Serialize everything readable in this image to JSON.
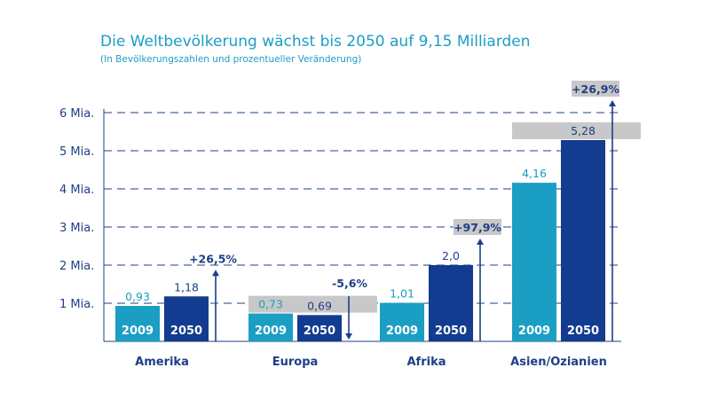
{
  "chart_data": {
    "type": "bar",
    "title": "Die Weltbevölkerung wächst bis 2050 auf 9,15 Milliarden",
    "subtitle": "(In Bevölkerungszahlen und prozentueller Veränderung)",
    "xlabel": "",
    "ylabel": "",
    "ylim": [
      0,
      6
    ],
    "yticks": [
      1,
      2,
      3,
      4,
      5,
      6
    ],
    "ytick_labels": [
      "1 Mia.",
      "2 Mia.",
      "3 Mia.",
      "4 Mia.",
      "5 Mia.",
      "6 Mia."
    ],
    "grid": true,
    "legend": "none",
    "categories": [
      "Amerika",
      "Europa",
      "Afrika",
      "Asien/Ozianien"
    ],
    "series": [
      {
        "name": "2009",
        "values": [
          0.93,
          0.73,
          1.01,
          4.16
        ],
        "labels": [
          "0,93",
          "0,73",
          "1,01",
          "4,16"
        ]
      },
      {
        "name": "2050",
        "values": [
          1.18,
          0.69,
          2.0,
          5.28
        ],
        "labels": [
          "1,18",
          "0,69",
          "2,0",
          "5,28"
        ]
      }
    ],
    "changes": [
      "+26,5%",
      "-5,6%",
      "+97,9%",
      "+26,9%"
    ],
    "highlighted_label_categories": [
      false,
      true,
      false,
      true
    ],
    "highlighted_change_categories": [
      false,
      false,
      true,
      true
    ],
    "colors": {
      "series_2009": "#1b9ec4",
      "series_2050": "#133b8f",
      "title": "#1b9ec4",
      "axis_text": "#1e3f86",
      "value_2009": "#1b9ec4",
      "value_2050": "#1e3f86",
      "label_box": "#c8c8c8",
      "grid": "#1e3f86",
      "arrow": "#1e3f86"
    }
  }
}
